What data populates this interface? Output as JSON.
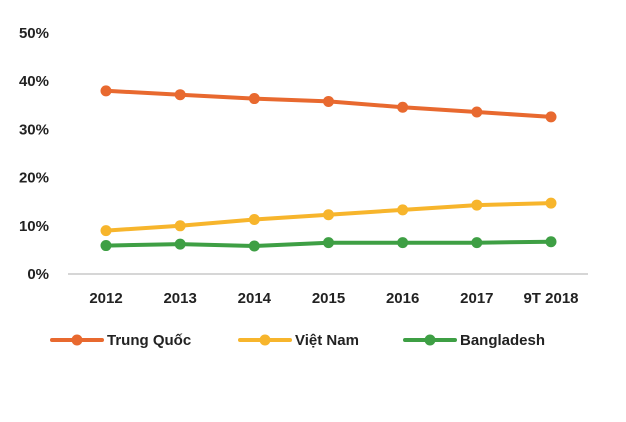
{
  "chart_data": {
    "type": "line",
    "categories": [
      "2012",
      "2013",
      "2014",
      "2015",
      "2016",
      "2017",
      "9T 2018"
    ],
    "y_ticks": [
      "0%",
      "10%",
      "20%",
      "30%",
      "40%",
      "50%"
    ],
    "ylim": [
      0,
      50
    ],
    "grid": false,
    "legend_position": "bottom",
    "series": [
      {
        "name": "Trung Quốc",
        "color": "#E8692F",
        "values": [
          38.0,
          37.2,
          36.4,
          35.8,
          34.6,
          33.6,
          32.6
        ]
      },
      {
        "name": "Việt Nam",
        "color": "#F7B52C",
        "values": [
          9.0,
          10.0,
          11.3,
          12.3,
          13.3,
          14.3,
          14.7
        ]
      },
      {
        "name": "Bangladesh",
        "color": "#3E9F44",
        "values": [
          5.9,
          6.2,
          5.8,
          6.5,
          6.5,
          6.5,
          6.7
        ]
      }
    ]
  }
}
